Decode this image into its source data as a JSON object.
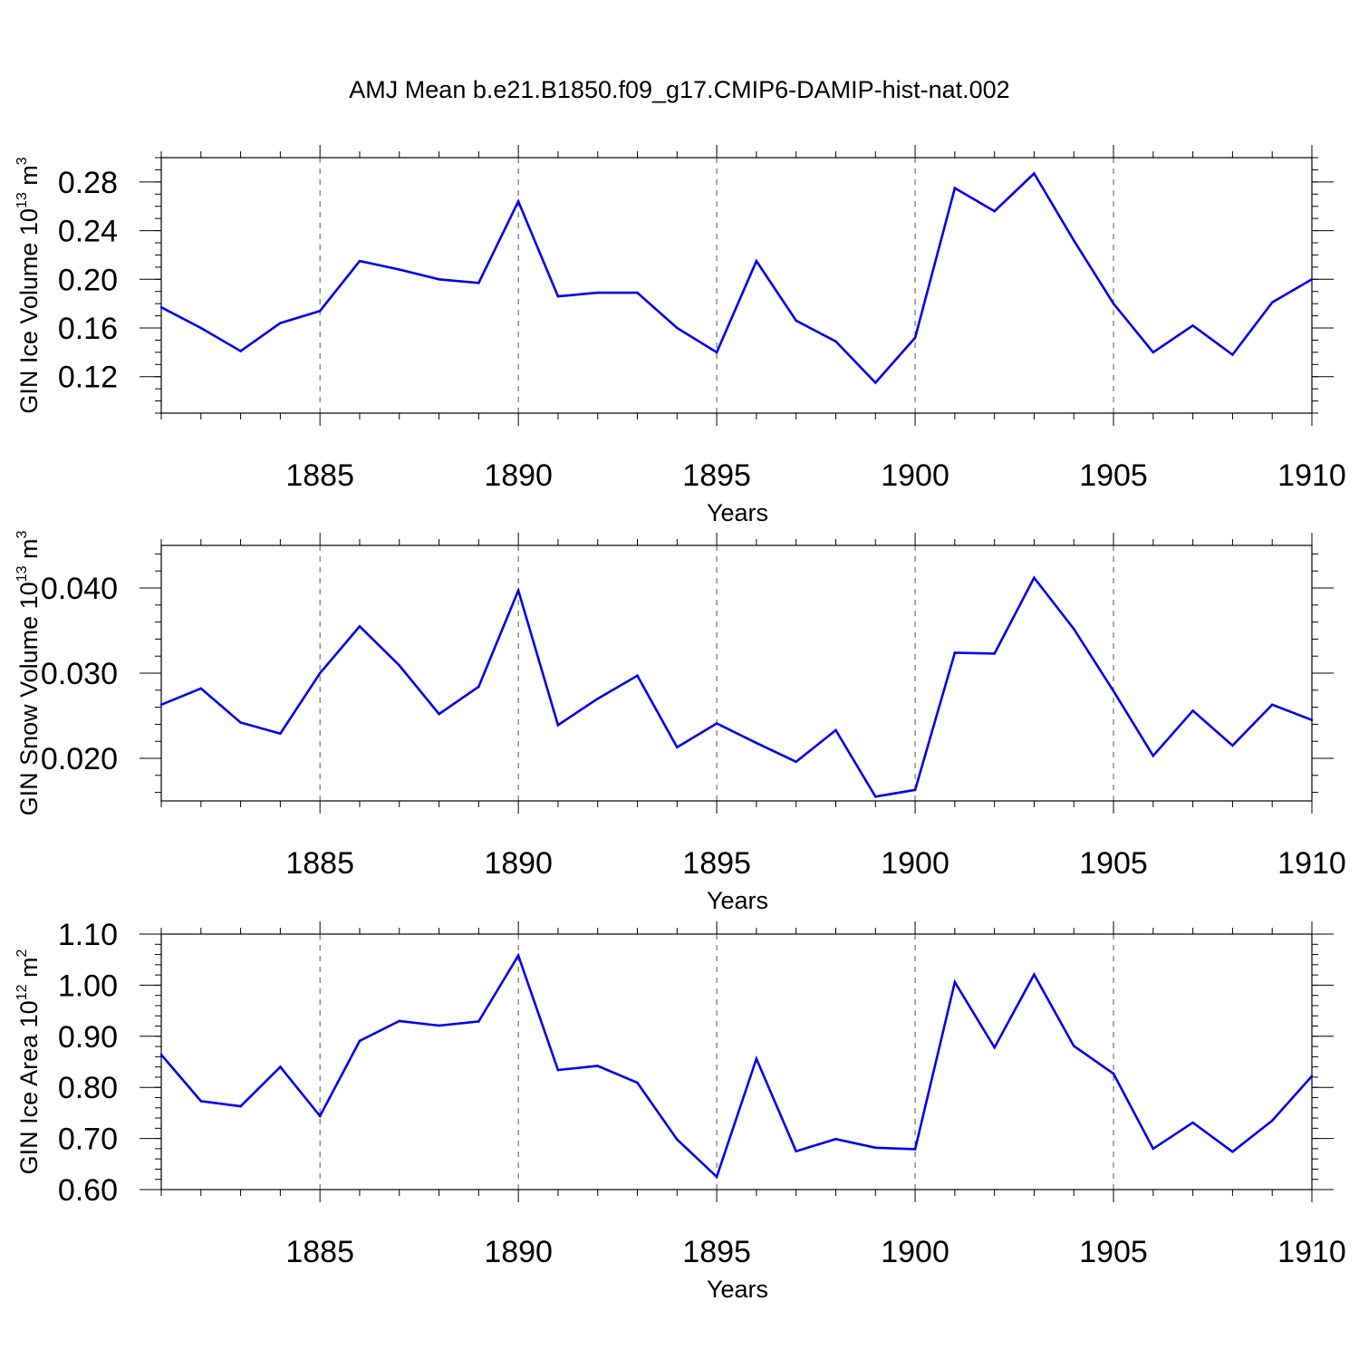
{
  "title": "AMJ Mean b.e21.B1850.f09_g17.CMIP6-DAMIP-hist-nat.002",
  "colors": {
    "line": "#0000ee",
    "axis": "#000000",
    "grid": "#555555"
  },
  "chart_data": [
    {
      "type": "line",
      "x": [
        1881,
        1882,
        1883,
        1884,
        1885,
        1886,
        1887,
        1888,
        1889,
        1890,
        1891,
        1892,
        1893,
        1894,
        1895,
        1896,
        1897,
        1898,
        1899,
        1900,
        1901,
        1902,
        1903,
        1904,
        1905,
        1906,
        1907,
        1908,
        1909,
        1910
      ],
      "series": [
        {
          "values": [
            0.177,
            0.16,
            0.141,
            0.164,
            0.174,
            0.215,
            0.208,
            0.2,
            0.197,
            0.264,
            0.186,
            0.189,
            0.189,
            0.16,
            0.14,
            0.215,
            0.166,
            0.149,
            0.115,
            0.152,
            0.275,
            0.256,
            0.287,
            0.232,
            0.18,
            0.14,
            0.162,
            0.138,
            0.181,
            0.2
          ]
        }
      ],
      "ylabel": "GIN Ice Volume 10",
      "ylabel_sup": "13",
      "ylabel_unit": " m",
      "ylabel_unit_sup": "3",
      "xlabel": "Years",
      "xlim": [
        1881,
        1910
      ],
      "ylim": [
        0.09,
        0.3
      ],
      "ytick_values": [
        0.12,
        0.16,
        0.2,
        0.24,
        0.28
      ],
      "ytick_labels": [
        "0.12",
        "0.16",
        "0.20",
        "0.24",
        "0.28"
      ],
      "yminor_step": 0.01,
      "xtick_values": [
        1885,
        1890,
        1895,
        1900,
        1905,
        1910
      ],
      "xtick_labels": [
        "1885",
        "1890",
        "1895",
        "1900",
        "1905",
        "1910"
      ],
      "grid": "vertical dashed at major x ticks"
    },
    {
      "type": "line",
      "x": [
        1881,
        1882,
        1883,
        1884,
        1885,
        1886,
        1887,
        1888,
        1889,
        1890,
        1891,
        1892,
        1893,
        1894,
        1895,
        1896,
        1897,
        1898,
        1899,
        1900,
        1901,
        1902,
        1903,
        1904,
        1905,
        1906,
        1907,
        1908,
        1909,
        1910
      ],
      "series": [
        {
          "values": [
            0.0263,
            0.0282,
            0.0242,
            0.0229,
            0.03,
            0.0355,
            0.0309,
            0.0252,
            0.0284,
            0.0397,
            0.0239,
            0.027,
            0.0297,
            0.0213,
            0.0241,
            0.0218,
            0.0196,
            0.0233,
            0.0155,
            0.0163,
            0.0324,
            0.0323,
            0.0412,
            0.0352,
            0.0279,
            0.0203,
            0.0256,
            0.0215,
            0.0263,
            0.0245
          ]
        }
      ],
      "ylabel": "GIN Snow Volume 10",
      "ylabel_sup": "13",
      "ylabel_unit": " m",
      "ylabel_unit_sup": "3",
      "xlabel": "Years",
      "xlim": [
        1881,
        1910
      ],
      "ylim": [
        0.015,
        0.045
      ],
      "ytick_values": [
        0.02,
        0.03,
        0.04
      ],
      "ytick_labels": [
        "0.020",
        "0.030",
        "0.040"
      ],
      "yminor_step": 0.002,
      "xtick_values": [
        1885,
        1890,
        1895,
        1900,
        1905,
        1910
      ],
      "xtick_labels": [
        "1885",
        "1890",
        "1895",
        "1900",
        "1905",
        "1910"
      ],
      "grid": "vertical dashed at major x ticks"
    },
    {
      "type": "line",
      "x": [
        1881,
        1882,
        1883,
        1884,
        1885,
        1886,
        1887,
        1888,
        1889,
        1890,
        1891,
        1892,
        1893,
        1894,
        1895,
        1896,
        1897,
        1898,
        1899,
        1900,
        1901,
        1902,
        1903,
        1904,
        1905,
        1906,
        1907,
        1908,
        1909,
        1910
      ],
      "series": [
        {
          "values": [
            0.864,
            0.773,
            0.763,
            0.84,
            0.744,
            0.891,
            0.93,
            0.921,
            0.929,
            1.058,
            0.834,
            0.842,
            0.809,
            0.698,
            0.625,
            0.856,
            0.675,
            0.699,
            0.682,
            0.679,
            1.006,
            0.878,
            1.021,
            0.881,
            0.827,
            0.68,
            0.731,
            0.674,
            0.735,
            0.822
          ]
        }
      ],
      "ylabel": "GIN Ice Area 10",
      "ylabel_sup": "12",
      "ylabel_unit": " m",
      "ylabel_unit_sup": "2",
      "xlabel": "Years",
      "xlim": [
        1881,
        1910
      ],
      "ylim": [
        0.6,
        1.1
      ],
      "ytick_values": [
        0.6,
        0.7,
        0.8,
        0.9,
        1.0,
        1.1
      ],
      "ytick_labels": [
        "0.60",
        "0.70",
        "0.80",
        "0.90",
        "1.00",
        "1.10"
      ],
      "yminor_step": 0.02,
      "xtick_values": [
        1885,
        1890,
        1895,
        1900,
        1905,
        1910
      ],
      "xtick_labels": [
        "1885",
        "1890",
        "1895",
        "1900",
        "1905",
        "1910"
      ],
      "grid": "vertical dashed at major x ticks"
    }
  ]
}
